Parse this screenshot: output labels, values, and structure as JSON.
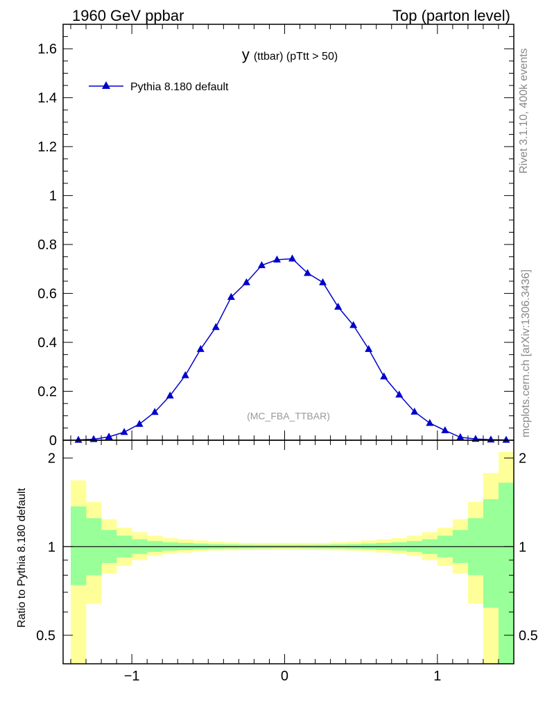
{
  "header": {
    "left_label": "1960 GeV ppbar",
    "right_label": "Top (parton level)"
  },
  "side_labels": {
    "rivet": "Rivet 3.1.10,  400k events",
    "mcplots": "mcplots.cern.ch [arXiv:1306.3436]"
  },
  "chart_data": [
    {
      "type": "line",
      "title_main": "y",
      "title_sub": "(ttbar)  (pTtt > 50)",
      "annotation": "(MC_FBA_TTBAR)",
      "xlim": [
        -1.45,
        1.5
      ],
      "ylim": [
        0,
        1.7
      ],
      "y_tick_labels": [
        "0",
        "0.2",
        "0.4",
        "0.6",
        "0.8",
        "1",
        "1.2",
        "1.4",
        "1.6"
      ],
      "legend": {
        "label": "Pythia 8.180 default",
        "placement": "top-left"
      },
      "series": [
        {
          "name": "Pythia 8.180 default",
          "color": "#0000cc",
          "marker": "triangle",
          "x": [
            -1.35,
            -1.25,
            -1.15,
            -1.05,
            -0.95,
            -0.85,
            -0.75,
            -0.65,
            -0.55,
            -0.45,
            -0.35,
            -0.25,
            -0.15,
            -0.05,
            0.05,
            0.15,
            0.25,
            0.35,
            0.45,
            0.55,
            0.65,
            0.75,
            0.85,
            0.95,
            1.05,
            1.15,
            1.25,
            1.35,
            1.45
          ],
          "y": [
            0.001,
            0.004,
            0.014,
            0.033,
            0.066,
            0.115,
            0.182,
            0.265,
            0.372,
            0.462,
            0.585,
            0.645,
            0.715,
            0.738,
            0.742,
            0.683,
            0.645,
            0.545,
            0.47,
            0.372,
            0.26,
            0.186,
            0.116,
            0.07,
            0.04,
            0.012,
            0.005,
            0.002,
            0.001
          ],
          "err": [
            0.001,
            0.001,
            0.002,
            0.003,
            0.005,
            0.006,
            0.007,
            0.008,
            0.009,
            0.01,
            0.01,
            0.011,
            0.011,
            0.012,
            0.012,
            0.011,
            0.011,
            0.01,
            0.01,
            0.009,
            0.008,
            0.007,
            0.006,
            0.005,
            0.004,
            0.002,
            0.001,
            0.001,
            0.001
          ]
        }
      ]
    },
    {
      "type": "area",
      "ylabel": "Ratio to Pythia 8.180 default",
      "xlim": [
        -1.45,
        1.5
      ],
      "ylim": [
        0.4,
        2.3
      ],
      "y_scale": "log",
      "y_tick_labels": [
        "0.5",
        "1",
        "2"
      ],
      "x_tick_labels": [
        "−1",
        "0",
        "1"
      ],
      "band_colors": {
        "inner": "#99ff99",
        "outer": "#ffff99",
        "line": "#000000"
      },
      "bins": [
        -1.4,
        -1.3,
        -1.2,
        -1.1,
        -1.0,
        -0.9,
        -0.8,
        -0.7,
        -0.6,
        -0.5,
        -0.4,
        -0.3,
        -0.2,
        -0.1,
        0.0,
        0.1,
        0.2,
        0.3,
        0.4,
        0.5,
        0.6,
        0.7,
        0.8,
        0.9,
        1.0,
        1.1,
        1.2,
        1.3,
        1.4,
        1.5
      ],
      "inner_up": [
        1.37,
        1.25,
        1.14,
        1.09,
        1.06,
        1.045,
        1.035,
        1.03,
        1.025,
        1.02,
        1.018,
        1.016,
        1.015,
        1.015,
        1.015,
        1.015,
        1.016,
        1.018,
        1.02,
        1.025,
        1.03,
        1.035,
        1.045,
        1.06,
        1.09,
        1.14,
        1.25,
        1.45,
        1.65
      ],
      "inner_dn": [
        0.74,
        0.8,
        0.88,
        0.92,
        0.945,
        0.96,
        0.97,
        0.975,
        0.98,
        0.983,
        0.985,
        0.986,
        0.987,
        0.988,
        0.988,
        0.987,
        0.986,
        0.985,
        0.983,
        0.98,
        0.975,
        0.97,
        0.96,
        0.945,
        0.92,
        0.88,
        0.8,
        0.62,
        0.38
      ],
      "outer_up": [
        1.68,
        1.42,
        1.24,
        1.16,
        1.12,
        1.09,
        1.07,
        1.06,
        1.05,
        1.04,
        1.035,
        1.03,
        1.03,
        1.03,
        1.03,
        1.03,
        1.03,
        1.035,
        1.04,
        1.05,
        1.06,
        1.07,
        1.09,
        1.12,
        1.16,
        1.24,
        1.42,
        1.78,
        2.1
      ],
      "outer_dn": [
        0.3,
        0.64,
        0.81,
        0.86,
        0.9,
        0.93,
        0.945,
        0.955,
        0.965,
        0.97,
        0.972,
        0.974,
        0.975,
        0.976,
        0.976,
        0.975,
        0.974,
        0.972,
        0.97,
        0.965,
        0.955,
        0.945,
        0.93,
        0.9,
        0.86,
        0.81,
        0.64,
        0.3,
        0.3
      ]
    }
  ]
}
